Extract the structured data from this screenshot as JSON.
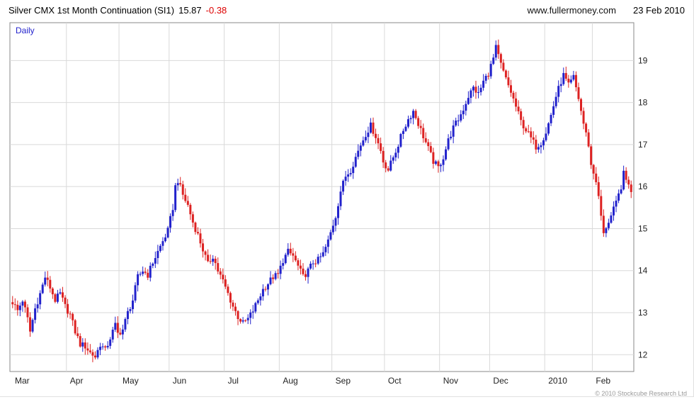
{
  "header": {
    "title": "Silver CMX 1st Month Continuation (SI1)",
    "last_price": "15.87",
    "change": "-0.38",
    "site": "www.fullermoney.com",
    "date": "23 Feb 2010"
  },
  "chart": {
    "interval_label": "Daily",
    "copyright": "© 2010 Stockcube Research Ltd",
    "colors": {
      "up": "#2222cc",
      "down": "#dd2222",
      "grid": "#d9d9d9",
      "border": "#888888",
      "axis_text": "#222222"
    }
  },
  "chart_data": {
    "type": "candlestick",
    "title": "Silver CMX 1st Month Continuation (SI1)",
    "interval": "Daily",
    "last_close": 15.87,
    "change": -0.38,
    "ylim": [
      11.6,
      19.9
    ],
    "y_ticks": [
      12,
      13,
      14,
      15,
      16,
      17,
      18,
      19
    ],
    "x_labels": [
      "Mar",
      "Apr",
      "May",
      "Jun",
      "Jul",
      "Aug",
      "Sep",
      "Oct",
      "Nov",
      "Dec",
      "2010",
      "Feb"
    ],
    "month_start_indices": [
      0,
      22,
      43,
      63,
      85,
      107,
      128,
      149,
      171,
      191,
      213,
      232
    ],
    "total_days": 248,
    "price_path": [
      [
        0,
        13.25
      ],
      [
        2,
        13.05
      ],
      [
        4,
        13.3
      ],
      [
        6,
        12.85
      ],
      [
        7,
        12.55
      ],
      [
        9,
        13.1
      ],
      [
        11,
        13.45
      ],
      [
        13,
        13.85
      ],
      [
        15,
        13.6
      ],
      [
        17,
        13.3
      ],
      [
        19,
        13.45
      ],
      [
        21,
        13.15
      ],
      [
        23,
        12.95
      ],
      [
        25,
        12.55
      ],
      [
        27,
        12.25
      ],
      [
        29,
        12.2
      ],
      [
        31,
        12.05
      ],
      [
        33,
        11.95
      ],
      [
        35,
        12.25
      ],
      [
        37,
        12.1
      ],
      [
        39,
        12.4
      ],
      [
        41,
        12.7
      ],
      [
        42,
        12.5
      ],
      [
        44,
        12.6
      ],
      [
        46,
        13.0
      ],
      [
        48,
        13.3
      ],
      [
        50,
        13.85
      ],
      [
        52,
        14.0
      ],
      [
        54,
        13.9
      ],
      [
        56,
        14.2
      ],
      [
        58,
        14.45
      ],
      [
        60,
        14.7
      ],
      [
        62,
        14.95
      ],
      [
        64,
        15.5
      ],
      [
        65,
        16.0
      ],
      [
        66,
        16.15
      ],
      [
        68,
        15.8
      ],
      [
        70,
        15.55
      ],
      [
        72,
        15.15
      ],
      [
        74,
        14.85
      ],
      [
        76,
        14.5
      ],
      [
        78,
        14.15
      ],
      [
        80,
        14.35
      ],
      [
        82,
        14.0
      ],
      [
        84,
        13.75
      ],
      [
        86,
        13.45
      ],
      [
        88,
        13.15
      ],
      [
        90,
        12.9
      ],
      [
        92,
        12.75
      ],
      [
        94,
        12.85
      ],
      [
        96,
        13.05
      ],
      [
        98,
        13.3
      ],
      [
        100,
        13.55
      ],
      [
        102,
        13.7
      ],
      [
        104,
        13.85
      ],
      [
        106,
        13.9
      ],
      [
        108,
        14.25
      ],
      [
        110,
        14.45
      ],
      [
        112,
        14.35
      ],
      [
        114,
        14.1
      ],
      [
        116,
        13.85
      ],
      [
        118,
        14.0
      ],
      [
        120,
        14.2
      ],
      [
        122,
        14.25
      ],
      [
        124,
        14.4
      ],
      [
        126,
        14.7
      ],
      [
        127,
        14.9
      ],
      [
        129,
        15.3
      ],
      [
        131,
        15.9
      ],
      [
        133,
        16.25
      ],
      [
        135,
        16.4
      ],
      [
        137,
        16.7
      ],
      [
        139,
        17.0
      ],
      [
        141,
        17.25
      ],
      [
        143,
        17.45
      ],
      [
        145,
        17.2
      ],
      [
        147,
        16.85
      ],
      [
        148,
        16.6
      ],
      [
        150,
        16.4
      ],
      [
        152,
        16.7
      ],
      [
        154,
        17.0
      ],
      [
        156,
        17.35
      ],
      [
        158,
        17.6
      ],
      [
        160,
        17.8
      ],
      [
        162,
        17.5
      ],
      [
        164,
        17.2
      ],
      [
        166,
        16.9
      ],
      [
        168,
        16.6
      ],
      [
        170,
        16.45
      ],
      [
        172,
        16.7
      ],
      [
        174,
        17.1
      ],
      [
        176,
        17.4
      ],
      [
        178,
        17.6
      ],
      [
        180,
        17.85
      ],
      [
        182,
        18.15
      ],
      [
        184,
        18.35
      ],
      [
        186,
        18.2
      ],
      [
        188,
        18.5
      ],
      [
        190,
        18.7
      ],
      [
        192,
        19.05
      ],
      [
        193,
        19.3
      ],
      [
        195,
        18.9
      ],
      [
        197,
        18.55
      ],
      [
        199,
        18.25
      ],
      [
        201,
        17.9
      ],
      [
        203,
        17.55
      ],
      [
        205,
        17.35
      ],
      [
        207,
        17.15
      ],
      [
        209,
        16.95
      ],
      [
        211,
        17.05
      ],
      [
        213,
        17.3
      ],
      [
        215,
        17.7
      ],
      [
        217,
        18.15
      ],
      [
        219,
        18.5
      ],
      [
        220,
        18.65
      ],
      [
        222,
        18.4
      ],
      [
        224,
        18.6
      ],
      [
        226,
        18.1
      ],
      [
        228,
        17.5
      ],
      [
        230,
        17.0
      ],
      [
        231,
        16.5
      ],
      [
        233,
        16.15
      ],
      [
        235,
        15.3
      ],
      [
        236,
        14.85
      ],
      [
        237,
        15.05
      ],
      [
        239,
        15.3
      ],
      [
        241,
        15.6
      ],
      [
        243,
        16.0
      ],
      [
        244,
        16.3
      ],
      [
        245,
        16.15
      ],
      [
        246,
        16.1
      ],
      [
        247,
        15.87
      ]
    ]
  }
}
